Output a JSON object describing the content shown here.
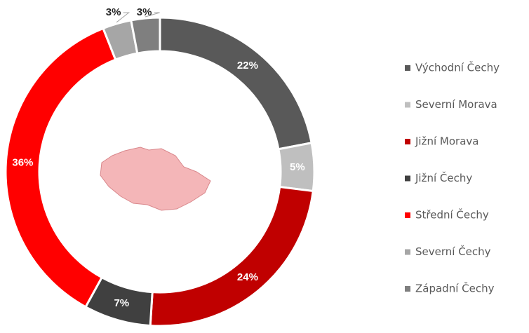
{
  "chart_data": {
    "type": "donut",
    "categories": [
      "Východní Čechy",
      "Severní Morava",
      "Jižní Morava",
      "Jižní Čechy",
      "Střední  Čechy",
      "Severní Čechy",
      "Západní Čechy"
    ],
    "values": [
      22,
      5,
      24,
      7,
      36,
      3,
      3
    ],
    "value_labels": [
      "22%",
      "5%",
      "24%",
      "7%",
      "36%",
      "3%",
      "3%"
    ],
    "colors": [
      "#595959",
      "#bfbfbf",
      "#c00000",
      "#404040",
      "#ff0000",
      "#a6a6a6",
      "#7f7f7f"
    ],
    "legend": "right"
  }
}
